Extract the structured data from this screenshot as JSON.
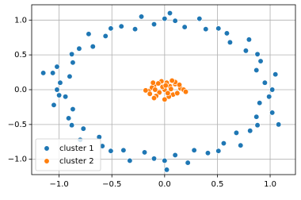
{
  "chart_data": {
    "type": "scatter",
    "xlim": [
      -1.26,
      1.24
    ],
    "ylim": [
      -1.22,
      1.22
    ],
    "xticks": [
      {
        "value": -1.0,
        "label": "−1.0"
      },
      {
        "value": -0.5,
        "label": "−0.5"
      },
      {
        "value": 0,
        "label": "0.0"
      },
      0.5,
      {
        "value": 1.0,
        "label": "1.0"
      }
    ],
    "yticks": [
      {
        "value": -1.0,
        "label": "−1.0"
      },
      {
        "value": -0.5,
        "label": "−0.5"
      },
      {
        "value": 0,
        "label": "0.0"
      },
      0.5,
      {
        "value": 1.0,
        "label": "1.0"
      }
    ],
    "grid": true,
    "legend": "lower left",
    "series": [
      {
        "name": "cluster 1",
        "color": "#1f77b4",
        "x": [
          1.02,
          0.95,
          1.05,
          0.87,
          0.91,
          0.88,
          0.77,
          0.8,
          0.62,
          0.59,
          0.51,
          0.39,
          0.33,
          0.19,
          0.1,
          0,
          -0.1,
          -0.22,
          -0.28,
          -0.41,
          -0.51,
          -0.56,
          -0.72,
          -0.68,
          -0.81,
          -0.88,
          -0.87,
          -1.02,
          -0.9,
          -0.99,
          -1.02,
          -0.94,
          -1.05,
          -0.87,
          -0.91,
          -0.88,
          -0.77,
          -0.8,
          -0.62,
          -0.59,
          -0.51,
          -0.39,
          -0.33,
          -0.19,
          -0.1,
          0,
          0.1,
          0.22,
          0.28,
          0.41,
          0.51,
          0.56,
          0.72,
          0.68,
          0.81,
          0.88,
          0.87,
          1.02,
          0.9,
          0.99,
          -1.15,
          -1.06,
          -1.0,
          1.08,
          0.02,
          0.05
        ],
        "values": [
          0,
          0.1,
          0.22,
          0.28,
          0.41,
          0.51,
          0.56,
          0.72,
          0.68,
          0.81,
          0.88,
          0.87,
          1.02,
          0.9,
          0.99,
          1.02,
          0.94,
          1.05,
          0.87,
          0.91,
          0.88,
          0.77,
          0.8,
          0.62,
          0.59,
          0.51,
          0.39,
          0.33,
          0.19,
          0.1,
          0,
          -0.1,
          -0.22,
          -0.28,
          -0.41,
          -0.51,
          -0.56,
          -0.72,
          -0.68,
          -0.81,
          -0.88,
          -0.87,
          -1.02,
          -0.9,
          -0.99,
          -1.02,
          -0.94,
          -1.05,
          -0.87,
          -0.91,
          -0.88,
          -0.77,
          -0.8,
          -0.62,
          -0.59,
          -0.51,
          -0.39,
          -0.33,
          -0.19,
          -0.1,
          0.24,
          0.24,
          -0.08,
          -0.5,
          -1.15,
          1.1
        ]
      },
      {
        "name": "cluster 2",
        "color": "#ff7f0e",
        "x": [
          0,
          0.05,
          -0.05,
          0.1,
          -0.1,
          0.15,
          -0.15,
          0.02,
          -0.03,
          0.08,
          -0.08,
          0.12,
          -0.12,
          0.18,
          -0.18,
          0.04,
          -0.06,
          0.1,
          -0.1,
          0,
          0.06,
          -0.02,
          0.14,
          -0.14,
          0.2,
          0.03,
          -0.09,
          0.07,
          -0.11,
          0.01
        ],
        "values": [
          0,
          0.05,
          -0.04,
          0.08,
          0.06,
          0.02,
          -0.02,
          0.1,
          0.12,
          -0.07,
          -0.09,
          -0.05,
          0.03,
          0.0,
          -0.01,
          -0.1,
          0.09,
          0.11,
          -0.12,
          -0.14,
          0.01,
          0.04,
          0.07,
          -0.06,
          -0.03,
          -0.05,
          0.0,
          0.13,
          0.1,
          0.06
        ]
      }
    ]
  }
}
